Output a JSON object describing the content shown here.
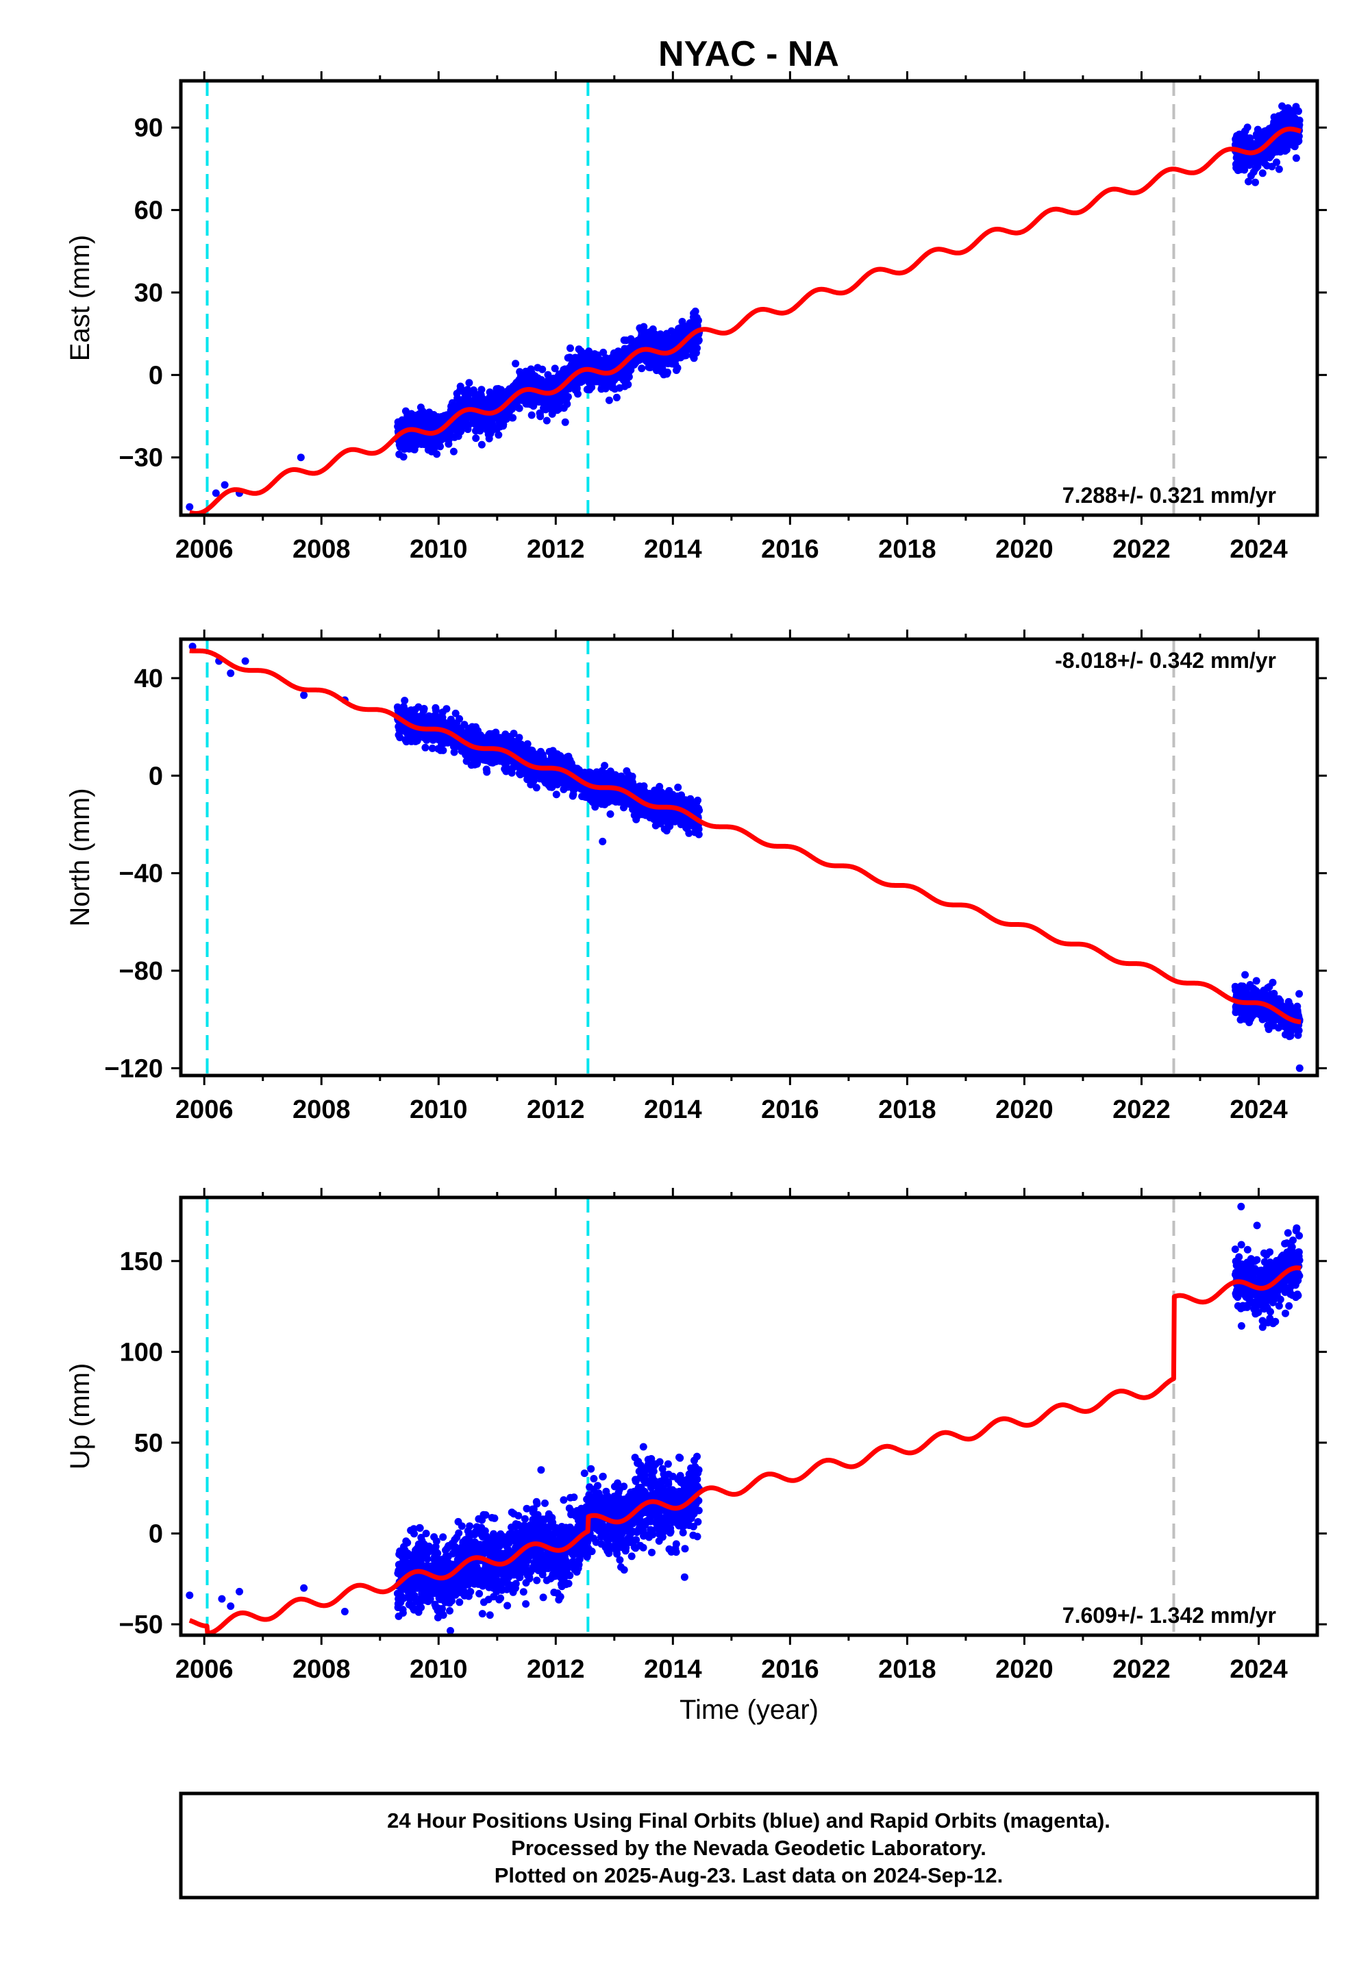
{
  "title": "NYAC - NA",
  "colors": {
    "observations": "#0000ff",
    "model": "#ff0000",
    "equipment_change": "#00e5ee",
    "other_event": "#c0c0c0",
    "frame": "#000000"
  },
  "chart_data": [
    {
      "type": "scatter",
      "component": "east",
      "ylabel": "East (mm)",
      "xlim": [
        2005.6,
        2025.0
      ],
      "ylim": [
        -51,
        107
      ],
      "xticks": [
        2006,
        2008,
        2010,
        2012,
        2014,
        2016,
        2018,
        2020,
        2022,
        2024
      ],
      "xtick_labels": [
        "2006",
        "2008",
        "2010",
        "2012",
        "2014",
        "2016",
        "2018",
        "2020",
        "2022",
        "2024"
      ],
      "yticks": [
        -30,
        0,
        30,
        60,
        90
      ],
      "ytick_labels": [
        "−30",
        "0",
        "30",
        "60",
        "90"
      ],
      "rate_text": "7.288+/- 0.321 mm/yr",
      "rate": 7.288,
      "model": {
        "rate": 7.288,
        "intercept_at_2006": -47.5,
        "annual_amplitude": 2.2,
        "annual_peak_year_fraction": 0.45,
        "steps": []
      },
      "data_segments": [
        {
          "start": 2009.3,
          "end": 2014.45,
          "scatter": 3.5
        },
        {
          "start": 2023.6,
          "end": 2024.7,
          "scatter": 3.5
        }
      ],
      "isolated_points": [
        [
          2005.75,
          -48
        ],
        [
          2006.2,
          -43
        ],
        [
          2006.35,
          -40
        ],
        [
          2006.6,
          -43
        ],
        [
          2007.65,
          -30
        ]
      ],
      "events": [
        {
          "year": 2006.05,
          "kind": "equipment_change"
        },
        {
          "year": 2012.55,
          "kind": "equipment_change"
        },
        {
          "year": 2022.55,
          "kind": "other_event"
        }
      ],
      "rate_position": "bottom-right"
    },
    {
      "type": "scatter",
      "component": "north",
      "ylabel": "North (mm)",
      "xlim": [
        2005.6,
        2025.0
      ],
      "ylim": [
        -123,
        56
      ],
      "xticks": [
        2006,
        2008,
        2010,
        2012,
        2014,
        2016,
        2018,
        2020,
        2022,
        2024
      ],
      "xtick_labels": [
        "2006",
        "2008",
        "2010",
        "2012",
        "2014",
        "2016",
        "2018",
        "2020",
        "2022",
        "2024"
      ],
      "yticks": [
        -120,
        -80,
        -40,
        0,
        40
      ],
      "ytick_labels": [
        "−120",
        "−80",
        "−40",
        "0",
        "40"
      ],
      "rate_text": "-8.018+/- 0.342 mm/yr",
      "rate": -8.018,
      "model": {
        "rate": -8.018,
        "intercept_at_2006": 50,
        "annual_amplitude": 1.3,
        "annual_peak_year_fraction": 0.1,
        "steps": []
      },
      "data_segments": [
        {
          "start": 2009.3,
          "end": 2014.45,
          "scatter": 3.2
        },
        {
          "start": 2023.6,
          "end": 2024.7,
          "scatter": 3.2
        }
      ],
      "isolated_points": [
        [
          2005.8,
          53
        ],
        [
          2006.25,
          47
        ],
        [
          2006.45,
          42
        ],
        [
          2006.7,
          47
        ],
        [
          2007.7,
          33
        ],
        [
          2008.4,
          31
        ],
        [
          2012.8,
          -27
        ],
        [
          2024.7,
          -120
        ]
      ],
      "events": [
        {
          "year": 2006.05,
          "kind": "equipment_change"
        },
        {
          "year": 2012.55,
          "kind": "equipment_change"
        },
        {
          "year": 2022.55,
          "kind": "other_event"
        }
      ],
      "rate_position": "top-right"
    },
    {
      "type": "scatter",
      "component": "up",
      "ylabel": "Up (mm)",
      "xlim": [
        2005.6,
        2025.0
      ],
      "ylim": [
        -56,
        185
      ],
      "xticks": [
        2006,
        2008,
        2010,
        2012,
        2014,
        2016,
        2018,
        2020,
        2022,
        2024
      ],
      "xtick_labels": [
        "2006",
        "2008",
        "2010",
        "2012",
        "2014",
        "2016",
        "2018",
        "2020",
        "2022",
        "2024"
      ],
      "yticks": [
        -50,
        0,
        50,
        100,
        150
      ],
      "ytick_labels": [
        "−50",
        "0",
        "50",
        "100",
        "150"
      ],
      "rate_text": "7.609+/- 1.342 mm/yr",
      "rate": 7.609,
      "model": {
        "rate": 7.609,
        "intercept_at_2006": -48,
        "annual_amplitude": 3.5,
        "annual_peak_year_fraction": 0.6,
        "steps": [
          {
            "year": 2006.05,
            "offset": -4
          },
          {
            "year": 2012.55,
            "offset": 8
          },
          {
            "year": 2022.55,
            "offset": 45
          }
        ]
      },
      "data_segments": [
        {
          "start": 2009.3,
          "end": 2014.45,
          "scatter": 10
        },
        {
          "start": 2023.6,
          "end": 2024.7,
          "scatter": 8
        }
      ],
      "isolated_points": [
        [
          2005.75,
          -34
        ],
        [
          2006.3,
          -36
        ],
        [
          2006.45,
          -40
        ],
        [
          2006.6,
          -32
        ],
        [
          2007.7,
          -30
        ],
        [
          2008.4,
          -43
        ],
        [
          2011.75,
          35
        ],
        [
          2014.2,
          -24
        ],
        [
          2023.7,
          180
        ]
      ],
      "events": [
        {
          "year": 2006.05,
          "kind": "equipment_change"
        },
        {
          "year": 2012.55,
          "kind": "equipment_change"
        },
        {
          "year": 2022.55,
          "kind": "other_event"
        }
      ],
      "rate_position": "bottom-right",
      "xlabel": "Time (year)"
    }
  ],
  "footer": {
    "line1": "24 Hour Positions Using Final Orbits (blue) and Rapid Orbits (magenta).",
    "line2": "Processed by the Nevada Geodetic Laboratory.",
    "line3": "Plotted on 2025-Aug-23. Last data on 2024-Sep-12."
  }
}
